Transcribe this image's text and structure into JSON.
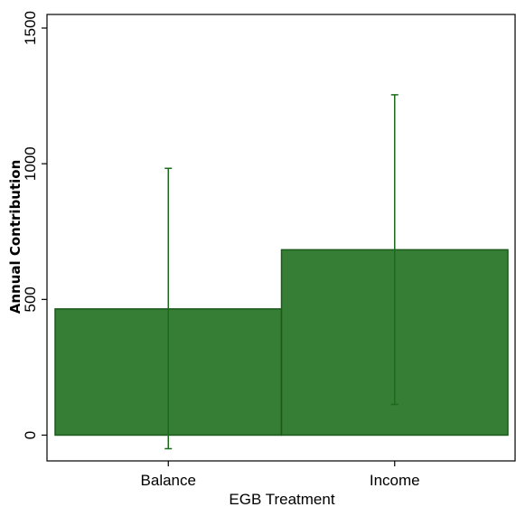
{
  "chart_data": {
    "type": "bar",
    "title": "",
    "xlabel": "EGB Treatment",
    "ylabel": "Annual Contribution",
    "categories": [
      "Balance",
      "Income"
    ],
    "values": [
      465,
      683
    ],
    "error_low": [
      -50,
      113
    ],
    "error_high": [
      983,
      1254
    ],
    "ylim": [
      -95,
      1550
    ],
    "yticks": [
      0,
      500,
      1000,
      1500
    ],
    "grid": false,
    "bar_color": "#367e35",
    "bar_edge_color": "#1a5a1c",
    "errorbar_color": "#1a6b1a"
  }
}
